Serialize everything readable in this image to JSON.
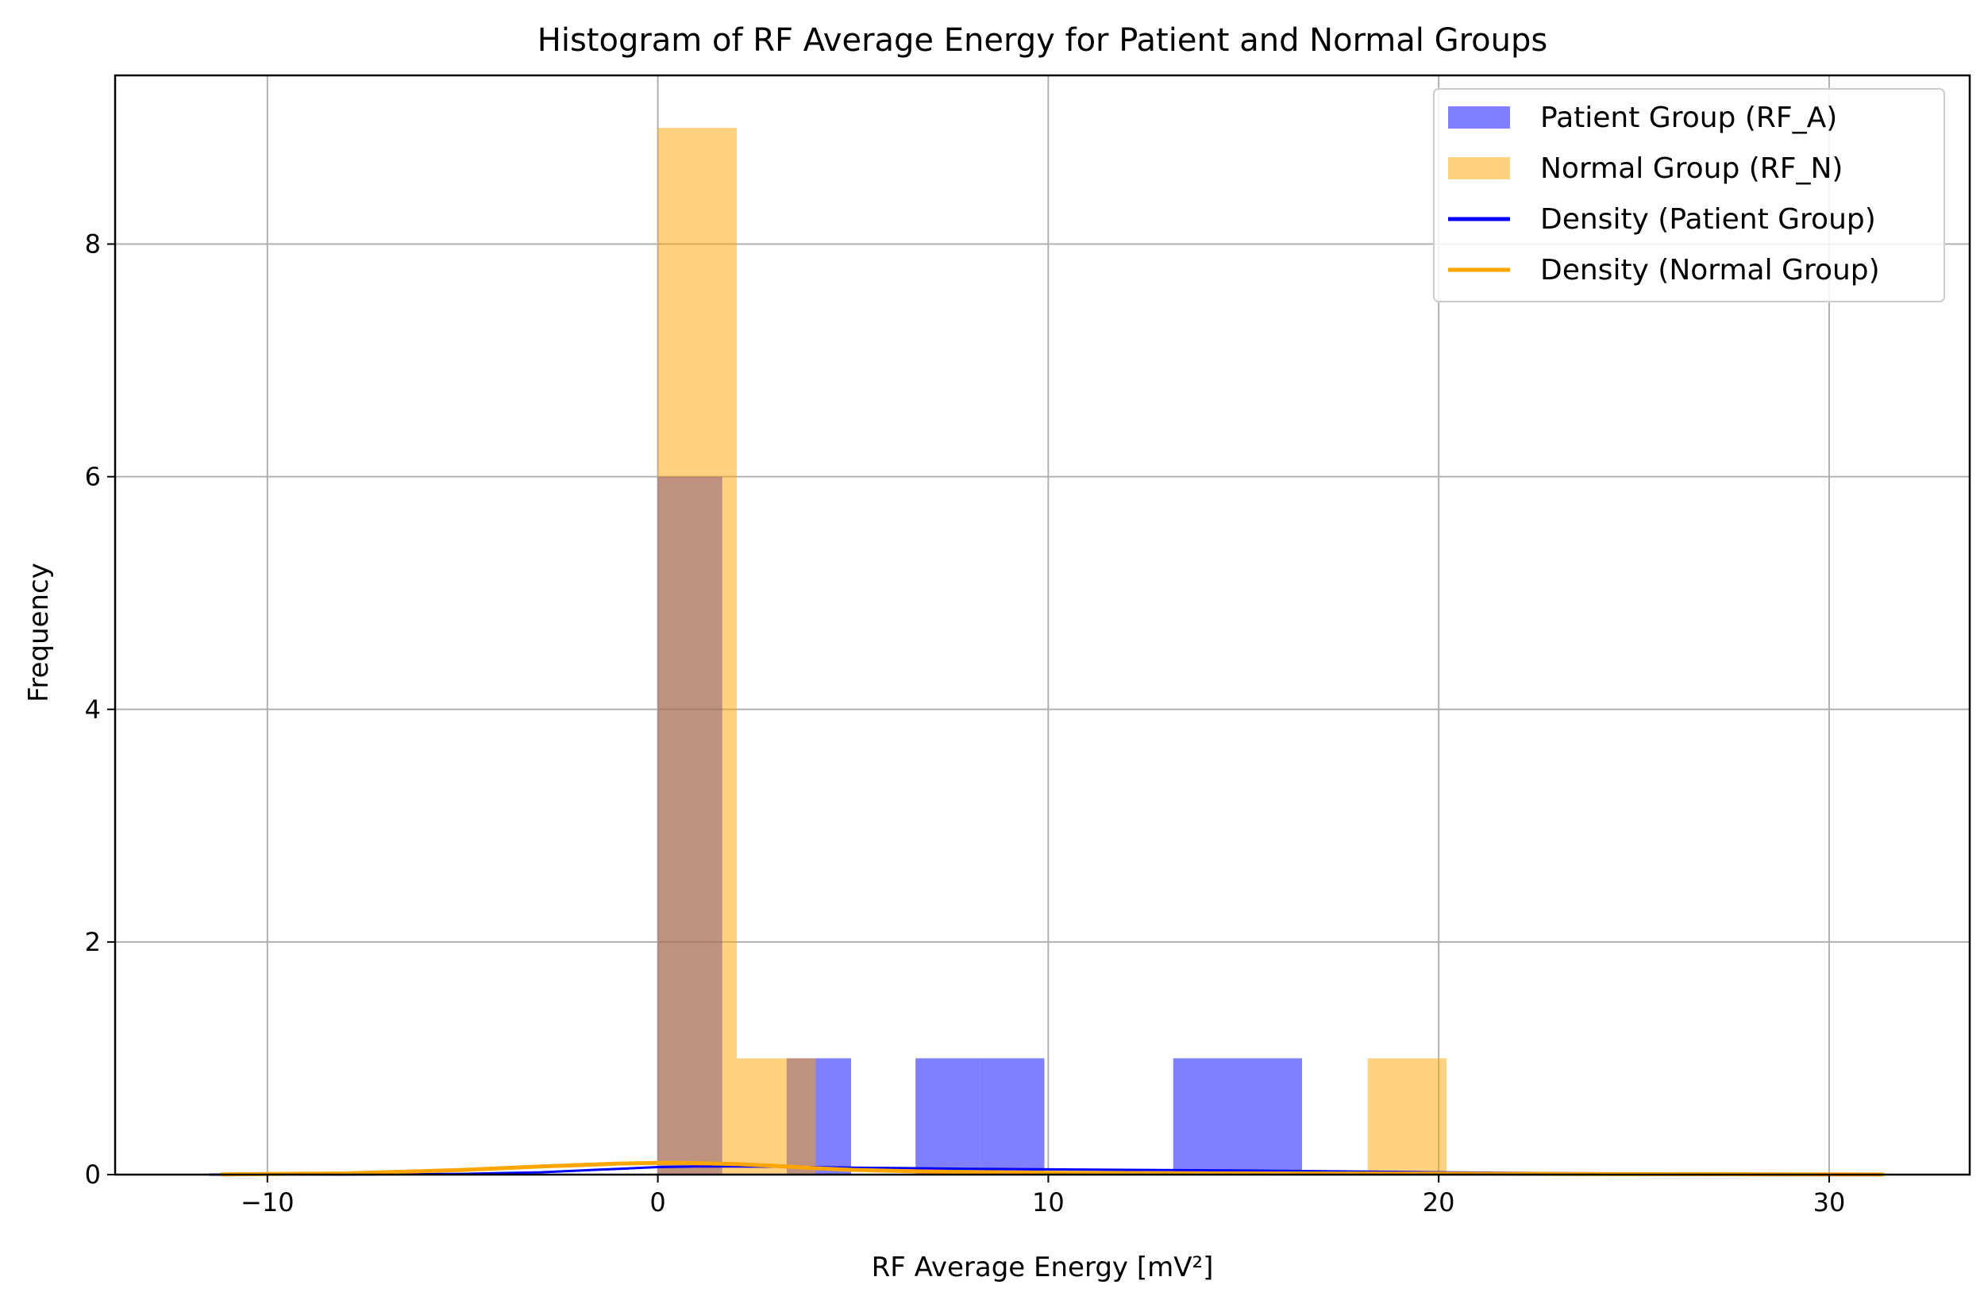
{
  "chart_data": {
    "type": "bar",
    "title": "Histogram of RF Average Energy for Patient and Normal Groups",
    "xlabel": "RF Average Energy [mV²]",
    "ylabel": "Frequency",
    "xlim": [
      -13.9,
      33.6
    ],
    "ylim": [
      0,
      9.45
    ],
    "xticks": [
      -10,
      0,
      10,
      20,
      30
    ],
    "xtick_labels": [
      "−10",
      "0",
      "10",
      "20",
      "30"
    ],
    "yticks": [
      0,
      2,
      4,
      6,
      8
    ],
    "ytick_labels": [
      "0",
      "2",
      "4",
      "6",
      "8"
    ],
    "grid": true,
    "legend_position": "top-right",
    "series": [
      {
        "name": "Patient Group (RF_A)",
        "kind": "histogram",
        "color": "#0000ff",
        "opacity": 0.5,
        "bins": [
          {
            "x0": 0.0,
            "x1": 1.65,
            "count": 6
          },
          {
            "x0": 3.3,
            "x1": 4.95,
            "count": 1
          },
          {
            "x0": 6.6,
            "x1": 8.25,
            "count": 1
          },
          {
            "x0": 8.25,
            "x1": 9.9,
            "count": 1
          },
          {
            "x0": 13.2,
            "x1": 14.85,
            "count": 1
          },
          {
            "x0": 14.85,
            "x1": 16.5,
            "count": 1
          }
        ]
      },
      {
        "name": "Normal Group (RF_N)",
        "kind": "histogram",
        "color": "#ffa500",
        "opacity": 0.5,
        "bins": [
          {
            "x0": 0.0,
            "x1": 2.02,
            "count": 9
          },
          {
            "x0": 2.02,
            "x1": 4.04,
            "count": 1
          },
          {
            "x0": 18.18,
            "x1": 20.2,
            "count": 1
          }
        ]
      },
      {
        "name": "Density (Patient Group)",
        "kind": "line",
        "color": "#0000ff",
        "x": [
          -11.5,
          -8,
          -5,
          -3,
          -1,
          0,
          1,
          2,
          3,
          5,
          8,
          10,
          15,
          20,
          25,
          28
        ],
        "y": [
          0.0,
          0.001,
          0.006,
          0.02,
          0.05,
          0.065,
          0.07,
          0.07,
          0.068,
          0.06,
          0.05,
          0.045,
          0.035,
          0.02,
          0.008,
          0.003
        ]
      },
      {
        "name": "Density (Normal Group)",
        "kind": "line",
        "color": "#ffa500",
        "x": [
          -11.2,
          -8,
          -5,
          -3,
          -1,
          0,
          0.5,
          1,
          2,
          3,
          4,
          5,
          7,
          10,
          15,
          20,
          25,
          31.4
        ],
        "y": [
          0.002,
          0.01,
          0.04,
          0.07,
          0.095,
          0.1,
          0.1,
          0.098,
          0.09,
          0.075,
          0.055,
          0.04,
          0.025,
          0.015,
          0.01,
          0.008,
          0.004,
          0.001
        ]
      }
    ]
  }
}
